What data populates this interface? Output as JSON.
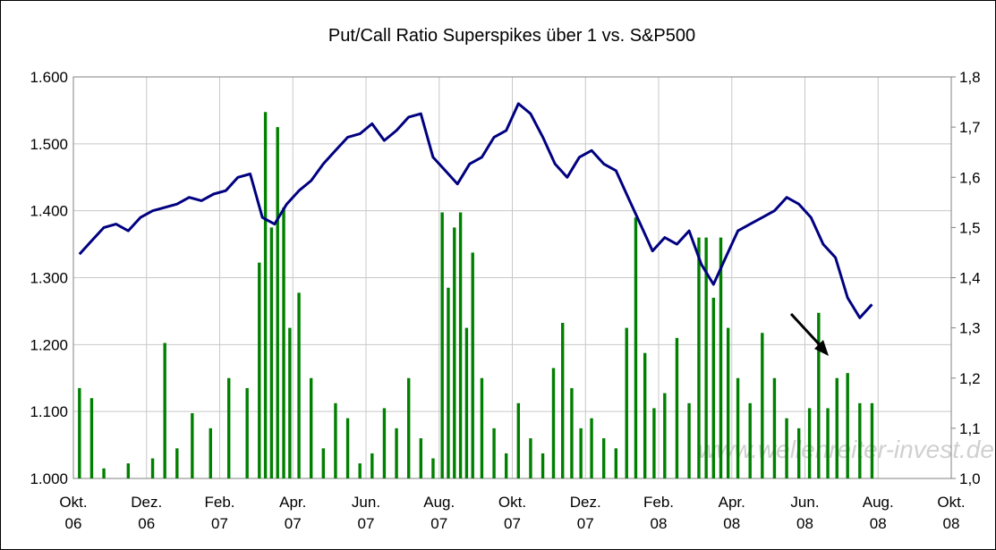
{
  "chart_data": {
    "type": "bar-line",
    "title": "Put/Call Ratio Superspikes über 1 vs. S&P500",
    "annotation": "www.wellenreiter-invest.de",
    "xlim": [
      "2006-10",
      "2008-10"
    ],
    "xticks": [
      {
        "value": "2006-10",
        "label": "Okt.\n06"
      },
      {
        "value": "2006-12",
        "label": "Dez.\n06"
      },
      {
        "value": "2007-02",
        "label": "Feb.\n07"
      },
      {
        "value": "2007-04",
        "label": "Apr.\n07"
      },
      {
        "value": "2007-06",
        "label": "Jun.\n07"
      },
      {
        "value": "2007-08",
        "label": "Aug.\n07"
      },
      {
        "value": "2007-10",
        "label": "Okt.\n07"
      },
      {
        "value": "2007-12",
        "label": "Dez.\n07"
      },
      {
        "value": "2008-02",
        "label": "Feb.\n08"
      },
      {
        "value": "2008-04",
        "label": "Apr.\n08"
      },
      {
        "value": "2008-06",
        "label": "Jun.\n08"
      },
      {
        "value": "2008-08",
        "label": "Aug.\n08"
      },
      {
        "value": "2008-10",
        "label": "Okt.\n08"
      }
    ],
    "ylim": [
      1.0,
      1.6
    ],
    "yticks": [
      {
        "value": 1.0,
        "label": "1.000"
      },
      {
        "value": 1.1,
        "label": "1.100"
      },
      {
        "value": 1.2,
        "label": "1.200"
      },
      {
        "value": 1.3,
        "label": "1.300"
      },
      {
        "value": 1.4,
        "label": "1.400"
      },
      {
        "value": 1.5,
        "label": "1.500"
      },
      {
        "value": 1.6,
        "label": "1.600"
      }
    ],
    "y2lim": [
      1.0,
      1.8
    ],
    "y2ticks": [
      {
        "value": 1.0,
        "label": "1,0"
      },
      {
        "value": 1.1,
        "label": "1,1"
      },
      {
        "value": 1.2,
        "label": "1,2"
      },
      {
        "value": 1.3,
        "label": "1,3"
      },
      {
        "value": 1.4,
        "label": "1,4"
      },
      {
        "value": 1.5,
        "label": "1,5"
      },
      {
        "value": 1.6,
        "label": "1,6"
      },
      {
        "value": 1.7,
        "label": "1,7"
      },
      {
        "value": 1.8,
        "label": "1,8"
      }
    ],
    "grid": true,
    "series": [
      {
        "kind": "bar",
        "axis": "y2",
        "color": "#008000",
        "x": [
          "2006-10",
          "2006-10",
          "2006-10",
          "2006-11",
          "2006-12",
          "2006-12",
          "2006-12",
          "2007-01",
          "2007-01",
          "2007-02",
          "2007-02",
          "2007-03",
          "2007-03",
          "2007-03",
          "2007-03",
          "2007-03",
          "2007-03",
          "2007-04",
          "2007-04",
          "2007-04",
          "2007-05",
          "2007-05",
          "2007-05",
          "2007-06",
          "2007-06",
          "2007-06",
          "2007-07",
          "2007-07",
          "2007-07",
          "2007-08",
          "2007-08",
          "2007-08",
          "2007-08",
          "2007-08",
          "2007-08",
          "2007-09",
          "2007-09",
          "2007-09",
          "2007-10",
          "2007-10",
          "2007-10",
          "2007-11",
          "2007-11",
          "2007-11",
          "2007-11",
          "2007-12",
          "2007-12",
          "2007-12",
          "2008-01",
          "2008-01",
          "2008-01",
          "2008-01",
          "2008-02",
          "2008-02",
          "2008-02",
          "2008-03",
          "2008-03",
          "2008-03",
          "2008-03",
          "2008-03",
          "2008-04",
          "2008-04",
          "2008-04",
          "2008-05",
          "2008-05",
          "2008-05",
          "2008-06",
          "2008-06",
          "2008-06",
          "2008-06",
          "2008-07",
          "2008-07",
          "2008-07"
        ],
        "values": [
          1.18,
          1.16,
          1.02,
          1.03,
          1.04,
          1.27,
          1.06,
          1.13,
          1.1,
          1.2,
          1.18,
          1.43,
          1.73,
          1.5,
          1.7,
          1.54,
          1.3,
          1.37,
          1.2,
          1.06,
          1.15,
          1.12,
          1.03,
          1.05,
          1.14,
          1.1,
          1.2,
          1.08,
          1.04,
          1.53,
          1.38,
          1.5,
          1.53,
          1.3,
          1.45,
          1.2,
          1.1,
          1.05,
          1.15,
          1.08,
          1.05,
          1.22,
          1.31,
          1.18,
          1.1,
          1.12,
          1.08,
          1.06,
          1.3,
          1.52,
          1.25,
          1.14,
          1.17,
          1.28,
          1.15,
          1.48,
          1.48,
          1.36,
          1.48,
          1.3,
          1.2,
          1.15,
          1.29,
          1.2,
          1.12,
          1.1,
          1.14,
          1.33,
          1.14,
          1.2,
          1.21,
          1.15,
          1.15
        ]
      },
      {
        "kind": "line",
        "color": "#000080",
        "x": [
          "2006-10",
          "2006-10",
          "2006-10",
          "2006-11",
          "2006-11",
          "2006-11",
          "2006-12",
          "2006-12",
          "2006-12",
          "2007-01",
          "2007-01",
          "2007-01",
          "2007-02",
          "2007-02",
          "2007-02",
          "2007-03",
          "2007-03",
          "2007-03",
          "2007-04",
          "2007-04",
          "2007-04",
          "2007-05",
          "2007-05",
          "2007-05",
          "2007-06",
          "2007-06",
          "2007-06",
          "2007-07",
          "2007-07",
          "2007-07",
          "2007-08",
          "2007-08",
          "2007-08",
          "2007-09",
          "2007-09",
          "2007-09",
          "2007-10",
          "2007-10",
          "2007-10",
          "2007-11",
          "2007-11",
          "2007-11",
          "2007-12",
          "2007-12",
          "2007-12",
          "2008-01",
          "2008-01",
          "2008-01",
          "2008-02",
          "2008-02",
          "2008-02",
          "2008-03",
          "2008-03",
          "2008-03",
          "2008-04",
          "2008-04",
          "2008-04",
          "2008-05",
          "2008-05",
          "2008-05",
          "2008-06",
          "2008-06",
          "2008-06",
          "2008-07",
          "2008-07",
          "2008-07"
        ],
        "values": [
          1.335,
          1.355,
          1.375,
          1.38,
          1.37,
          1.39,
          1.4,
          1.405,
          1.41,
          1.42,
          1.415,
          1.425,
          1.43,
          1.45,
          1.455,
          1.39,
          1.38,
          1.41,
          1.43,
          1.445,
          1.47,
          1.49,
          1.51,
          1.515,
          1.53,
          1.505,
          1.52,
          1.54,
          1.545,
          1.48,
          1.46,
          1.44,
          1.47,
          1.48,
          1.51,
          1.52,
          1.56,
          1.545,
          1.51,
          1.47,
          1.45,
          1.48,
          1.49,
          1.47,
          1.46,
          1.42,
          1.38,
          1.34,
          1.36,
          1.35,
          1.37,
          1.32,
          1.29,
          1.33,
          1.37,
          1.38,
          1.39,
          1.4,
          1.42,
          1.41,
          1.39,
          1.35,
          1.33,
          1.27,
          1.24,
          1.26
        ]
      }
    ]
  }
}
